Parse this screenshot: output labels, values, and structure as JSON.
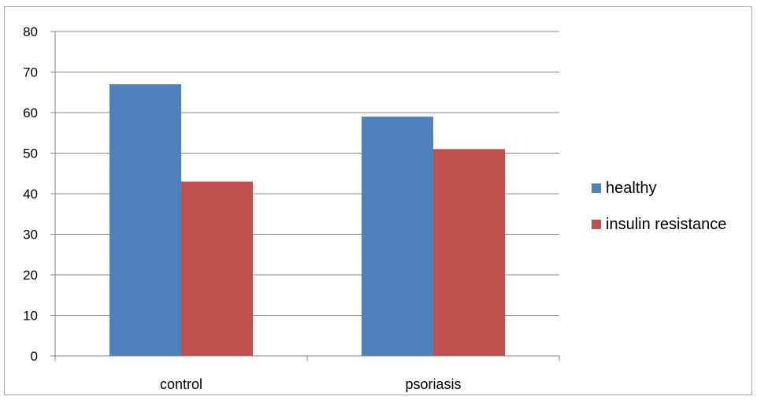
{
  "chart_data": {
    "type": "bar",
    "categories": [
      "control",
      "psoriasis"
    ],
    "series": [
      {
        "name": "healthy",
        "values": [
          67,
          59
        ],
        "color": "#4f81bd"
      },
      {
        "name": "insulin resistance",
        "values": [
          43,
          51
        ],
        "color": "#c0504d"
      }
    ],
    "title": "",
    "xlabel": "",
    "ylabel": "",
    "ylim": [
      0,
      80
    ],
    "yticks": [
      "0",
      "10",
      "20",
      "30",
      "40",
      "50",
      "60",
      "70",
      "80"
    ],
    "grid": true,
    "legend_position": "right"
  }
}
